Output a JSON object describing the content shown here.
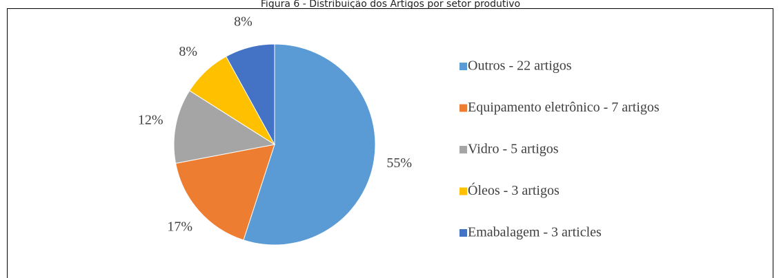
{
  "chart_data": {
    "type": "pie",
    "title": "Figura 6 - Distribuição dos Artigos por setor produtivo",
    "categories": [
      "Outros - 22 artigos",
      "Equipamento eletrônico - 7 artigos",
      "Vidro - 5 artigos",
      "Óleos - 3 artigos",
      "Emabalagem - 3 articles"
    ],
    "values": [
      55,
      17,
      12,
      8,
      8
    ],
    "value_labels": [
      "55%",
      "17%",
      "12%",
      "8%",
      "8%"
    ],
    "colors": [
      "#5b9bd5",
      "#ed7d31",
      "#a5a5a5",
      "#ffc000",
      "#4472c4"
    ],
    "legend": "right"
  }
}
